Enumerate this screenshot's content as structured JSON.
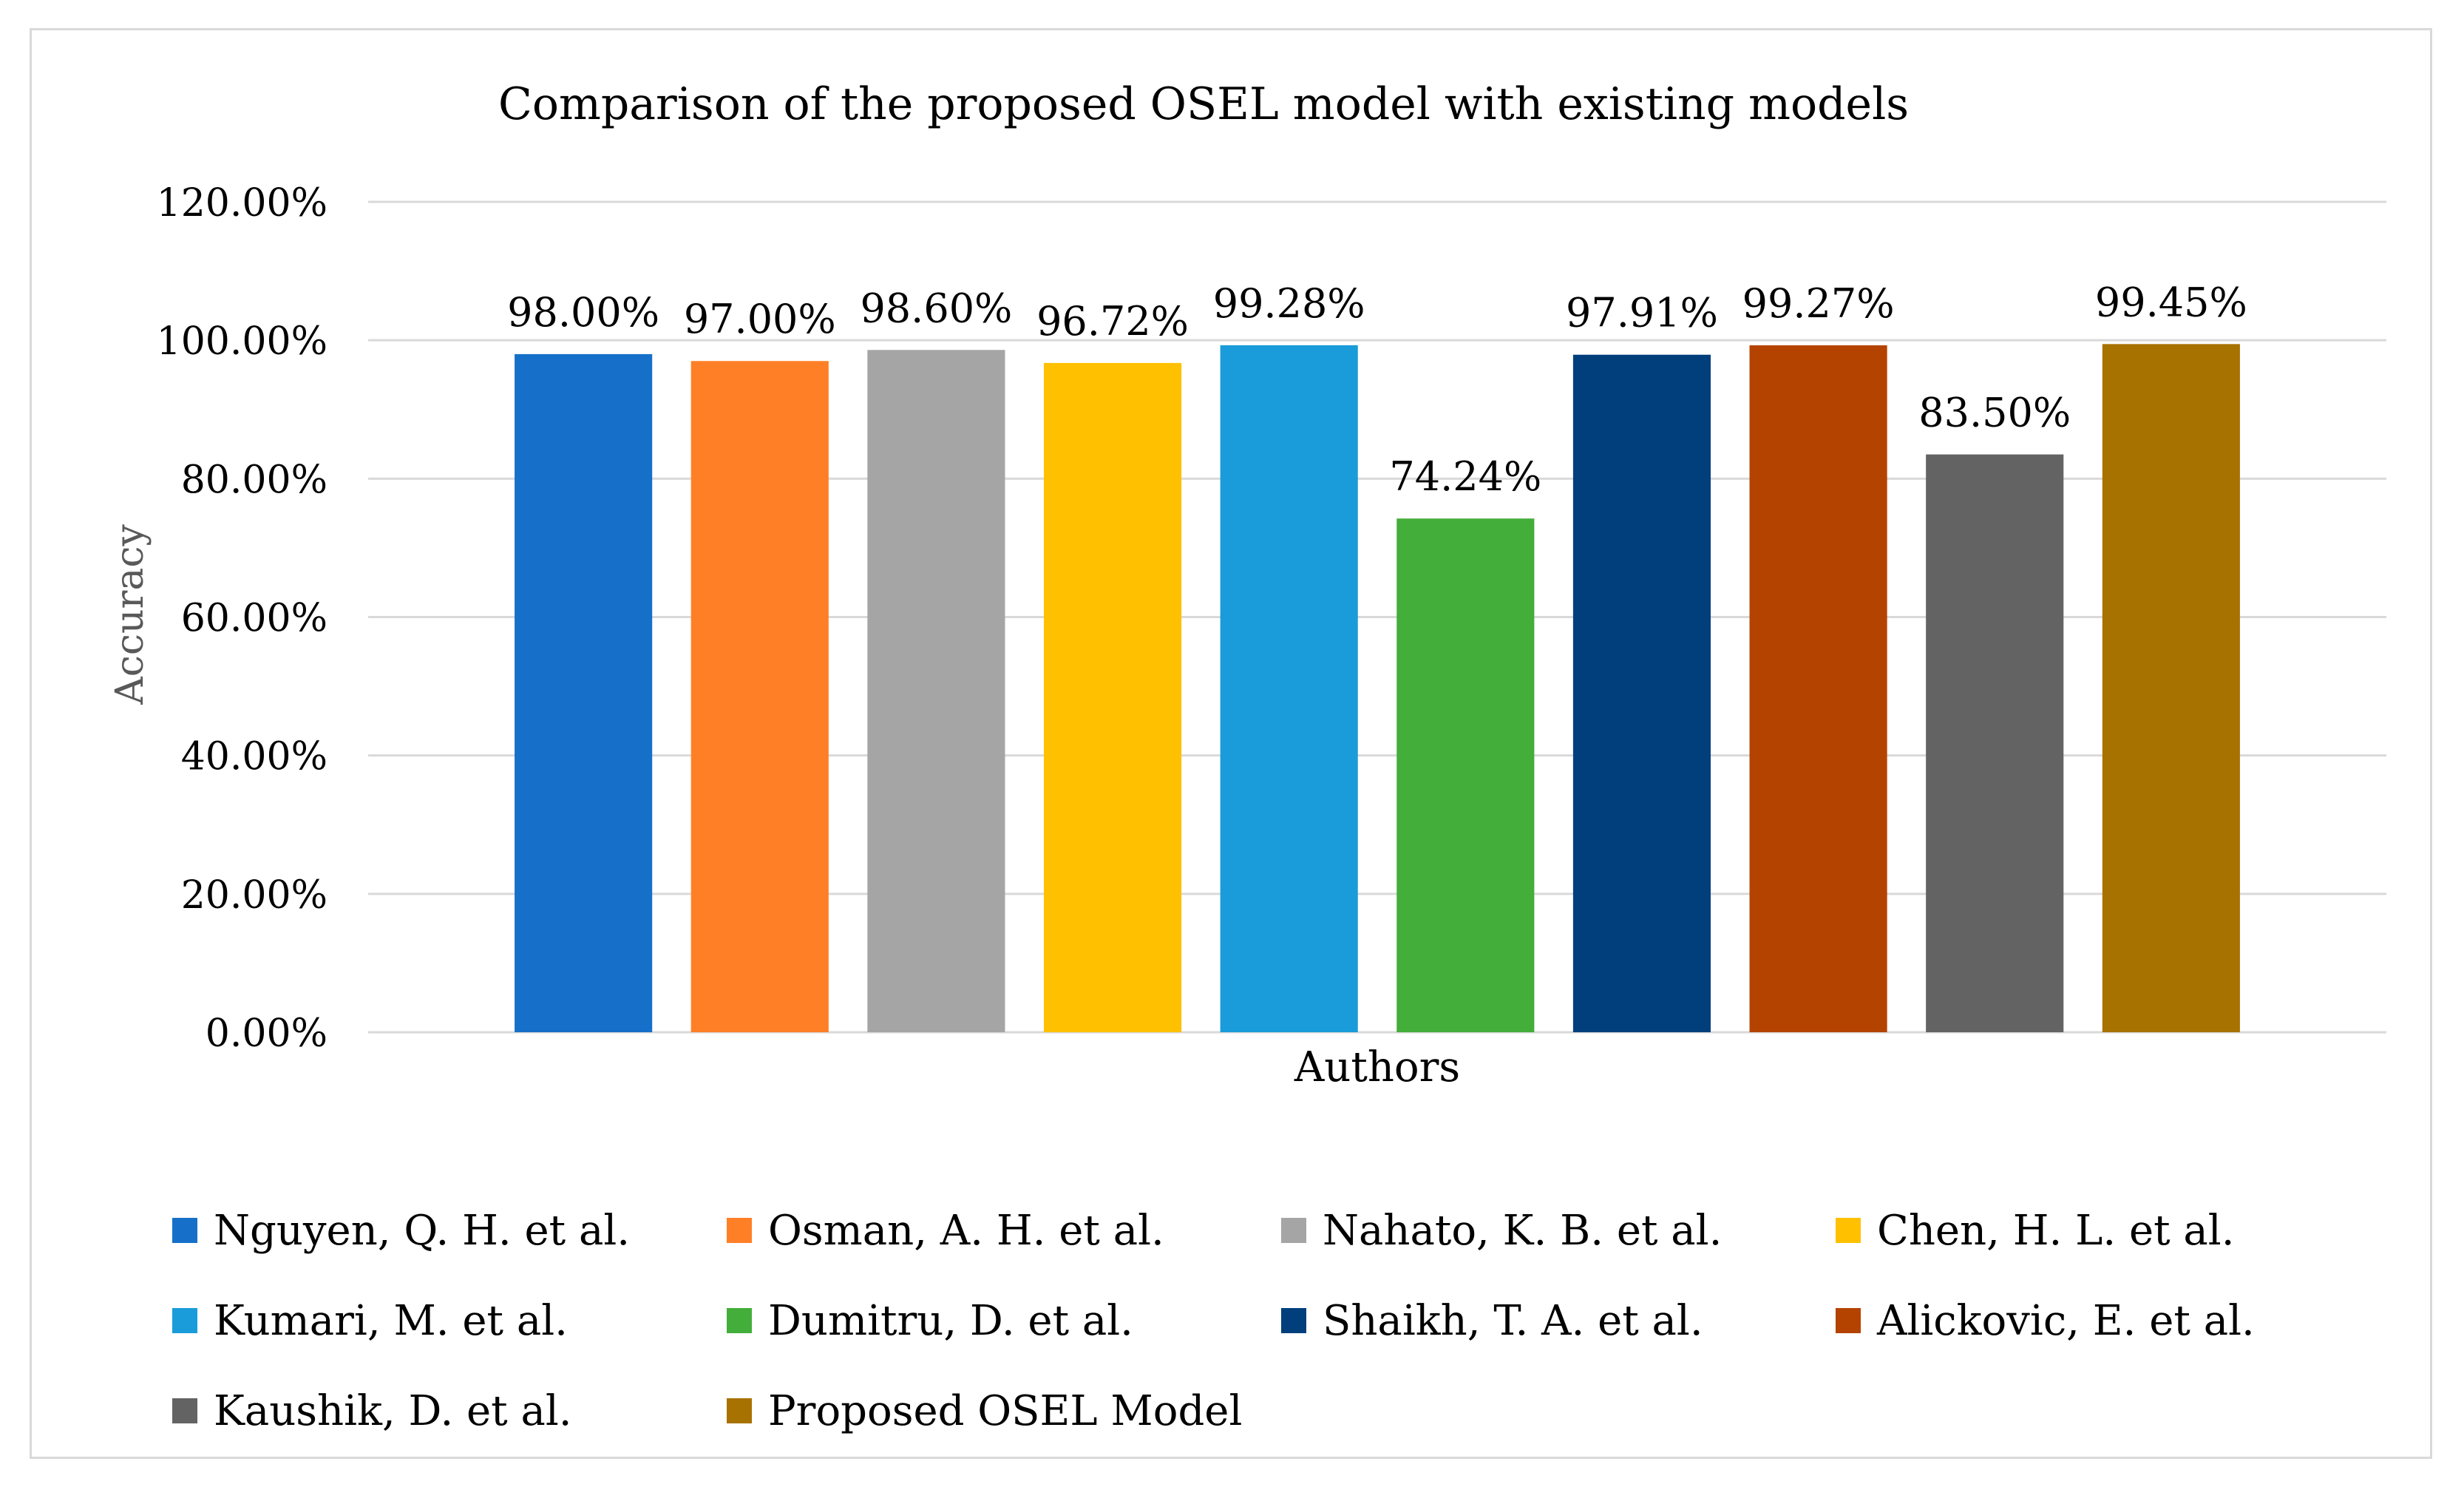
{
  "chart_data": {
    "type": "bar",
    "title": "Comparison of the proposed OSEL model with existing models",
    "xlabel": "Authors",
    "ylabel": "Accuracy",
    "ylim": [
      0,
      120
    ],
    "yticks": [
      0,
      20,
      40,
      60,
      80,
      100,
      120
    ],
    "ytick_labels": [
      "0.00%",
      "20.00%",
      "40.00%",
      "60.00%",
      "80.00%",
      "100.00%",
      "120.00%"
    ],
    "grid": true,
    "legend_position": "bottom",
    "series": [
      {
        "name": "Nguyen, Q. H. et al.",
        "value": 98.0,
        "label": "98.00%",
        "color": "#1670C9"
      },
      {
        "name": "Osman, A. H. et al.",
        "value": 97.0,
        "label": "97.00%",
        "color": "#FF7F27"
      },
      {
        "name": "Nahato, K. B. et al.",
        "value": 98.6,
        "label": "98.60%",
        "color": "#A5A5A5"
      },
      {
        "name": "Chen, H. L. et al.",
        "value": 96.72,
        "label": "96.72%",
        "color": "#FFC000"
      },
      {
        "name": "Kumari, M. et al.",
        "value": 99.28,
        "label": "99.28%",
        "color": "#199CD9"
      },
      {
        "name": "Dumitru, D. et al.",
        "value": 74.24,
        "label": "74.24%",
        "color": "#43AE3A"
      },
      {
        "name": "Shaikh, T. A. et al.",
        "value": 97.91,
        "label": "97.91%",
        "color": "#003F7C"
      },
      {
        "name": "Alickovic, E. et al.",
        "value": 99.27,
        "label": "99.27%",
        "color": "#B54300"
      },
      {
        "name": "Kaushik, D. et al.",
        "value": 83.5,
        "label": "83.50%",
        "color": "#636363"
      },
      {
        "name": "Proposed OSEL Model",
        "value": 99.45,
        "label": "99.45%",
        "color": "#A87200"
      }
    ]
  }
}
